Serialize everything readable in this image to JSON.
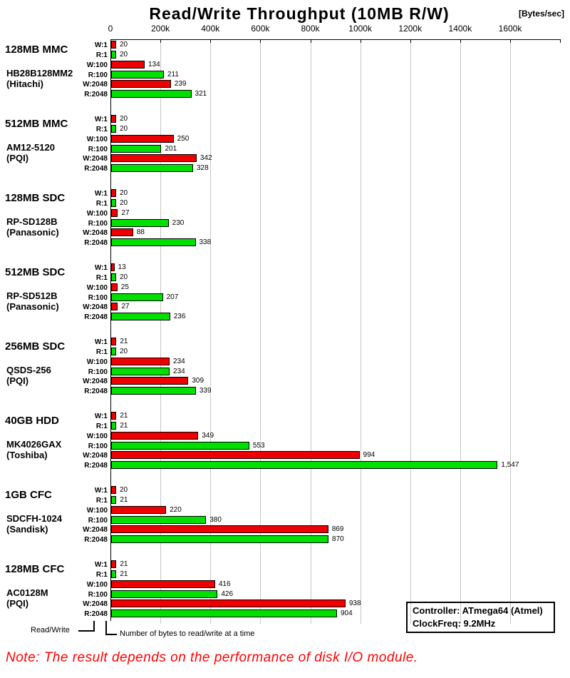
{
  "header": {
    "title": "Read/Write Throughput (10MB R/W)",
    "unit_label": "[Bytes/sec]"
  },
  "chart_data": {
    "type": "bar",
    "orientation": "horizontal",
    "title": "Read/Write Throughput (10MB R/W)",
    "value_unit_suffix": "k",
    "axis_unit": "Bytes/sec",
    "x_axis": {
      "ticks": [
        "0",
        "200k",
        "400k",
        "600k",
        "800k",
        "1000k",
        "1200k",
        "1400k",
        "1600k"
      ],
      "tick_interval_k": 200,
      "max_tick_k": 1600,
      "grid": true
    },
    "row_labels": [
      "W:1",
      "R:1",
      "W:100",
      "R:100",
      "W:2048",
      "R:2048"
    ],
    "series_colors": {
      "write": "#ee0000",
      "read": "#00e000"
    },
    "groups": [
      {
        "name": "128MB MMC",
        "model": "HB28B128MM2",
        "maker": "(Hitachi)",
        "values": [
          20,
          20,
          134,
          211,
          239,
          321
        ],
        "display": [
          "20",
          "20",
          "134",
          "211",
          "239",
          "321"
        ]
      },
      {
        "name": "512MB MMC",
        "model": "AM12-5120",
        "maker": "(PQI)",
        "values": [
          20,
          20,
          250,
          201,
          342,
          328
        ],
        "display": [
          "20",
          "20",
          "250",
          "201",
          "342",
          "328"
        ]
      },
      {
        "name": "128MB SDC",
        "model": "RP-SD128B",
        "maker": "(Panasonic)",
        "values": [
          20,
          20,
          27,
          230,
          88,
          338
        ],
        "display": [
          "20",
          "20",
          "27",
          "230",
          "88",
          "338"
        ]
      },
      {
        "name": "512MB SDC",
        "model": "RP-SD512B",
        "maker": "(Panasonic)",
        "values": [
          13,
          20,
          25,
          207,
          27,
          236
        ],
        "display": [
          "13",
          "20",
          "25",
          "207",
          "27",
          "236"
        ]
      },
      {
        "name": "256MB SDC",
        "model": "QSDS-256",
        "maker": "(PQI)",
        "values": [
          21,
          20,
          234,
          234,
          309,
          339
        ],
        "display": [
          "21",
          "20",
          "234",
          "234",
          "309",
          "339"
        ]
      },
      {
        "name": "40GB HDD",
        "model": "MK4026GAX",
        "maker": "(Toshiba)",
        "values": [
          21,
          21,
          349,
          553,
          994,
          1547
        ],
        "display": [
          "21",
          "21",
          "349",
          "553",
          "994",
          "1,547"
        ]
      },
      {
        "name": "1GB CFC",
        "model": "SDCFH-1024",
        "maker": "(Sandisk)",
        "values": [
          20,
          21,
          220,
          380,
          869,
          870
        ],
        "display": [
          "20",
          "21",
          "220",
          "380",
          "869",
          "870"
        ]
      },
      {
        "name": "128MB CFC",
        "model": "AC0128M",
        "maker": "(PQI)",
        "values": [
          21,
          21,
          416,
          426,
          938,
          904
        ],
        "display": [
          "21",
          "21",
          "416",
          "426",
          "938",
          "904"
        ]
      }
    ]
  },
  "footer": {
    "read_write_label": "Read/Write",
    "bytes_label": "Number of bytes to read/write at a time"
  },
  "info_box": {
    "line1": "Controller: ATmega64 (Atmel)",
    "line2": "ClockFreq: 9.2MHz"
  },
  "note": {
    "text": "Note: The result depends on the performance of disk I/O module."
  }
}
